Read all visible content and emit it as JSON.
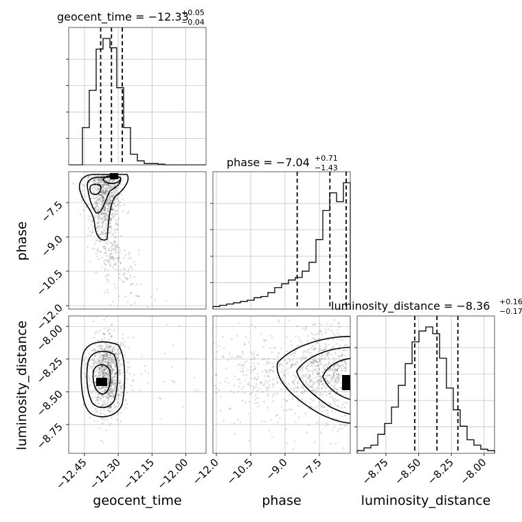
{
  "chart_data": {
    "type": "corner",
    "parameters": [
      "geocent_time",
      "phase",
      "luminosity_distance"
    ],
    "axis_labels": {
      "geocent_time": "geocent_time",
      "phase": "phase",
      "luminosity_distance": "luminosity_distance"
    },
    "ranges": {
      "geocent_time": [
        -12.52,
        -11.91
      ],
      "phase": [
        -12.15,
        -6.15
      ],
      "luminosity_distance": [
        -8.97,
        -7.92
      ]
    },
    "ticks": {
      "geocent_time": [
        "−12.45",
        "−12.30",
        "−12.15",
        "−12.00"
      ],
      "geocent_time_values": [
        -12.45,
        -12.3,
        -12.15,
        -12.0
      ],
      "phase": [
        "−12.0",
        "−10.5",
        "−9.0",
        "−7.5"
      ],
      "phase_values": [
        -12.0,
        -10.5,
        -9.0,
        -7.5
      ],
      "luminosity_distance": [
        "−8.75",
        "−8.50",
        "−8.25",
        "−8.00"
      ],
      "luminosity_distance_values": [
        -8.75,
        -8.5,
        -8.25,
        -8.0
      ]
    },
    "titles": [
      {
        "label": "geocent_time",
        "median": "−12.33",
        "plus": "+0.05",
        "minus": "−0.04"
      },
      {
        "label": "phase",
        "median": "−7.04",
        "plus": "+0.71",
        "minus": "−1.43"
      },
      {
        "label": "luminosity_distance",
        "median": "−8.36",
        "plus": "+0.16",
        "minus": "−0.17"
      }
    ],
    "quantiles": {
      "geocent_time": [
        -12.378,
        -12.33,
        -12.282
      ],
      "phase": [
        -8.47,
        -7.04,
        -6.33
      ],
      "luminosity_distance": [
        -8.53,
        -8.36,
        -8.2
      ]
    },
    "histograms": {
      "geocent_time": {
        "edges_start": -12.52,
        "bin_width": 0.0305,
        "counts": [
          0,
          0,
          0.28,
          0.56,
          0.87,
          0.95,
          0.88,
          0.58,
          0.28,
          0.08,
          0.03,
          0.01,
          0.01,
          0.005,
          0,
          0,
          0,
          0,
          0,
          0
        ]
      },
      "phase": {
        "edges_start": -12.15,
        "bin_width": 0.3,
        "counts": [
          0.02,
          0.03,
          0.04,
          0.05,
          0.06,
          0.07,
          0.09,
          0.1,
          0.13,
          0.17,
          0.2,
          0.23,
          0.25,
          0.3,
          0.37,
          0.55,
          0.78,
          0.92,
          0.85,
          1.0
        ]
      },
      "luminosity_distance": {
        "edges_start": -8.97,
        "bin_width": 0.0525,
        "counts": [
          0.02,
          0.04,
          0.06,
          0.14,
          0.22,
          0.34,
          0.5,
          0.66,
          0.82,
          0.9,
          0.93,
          0.88,
          0.7,
          0.48,
          0.32,
          0.2,
          0.1,
          0.06,
          0.03,
          0.02
        ]
      }
    },
    "grid": true
  }
}
